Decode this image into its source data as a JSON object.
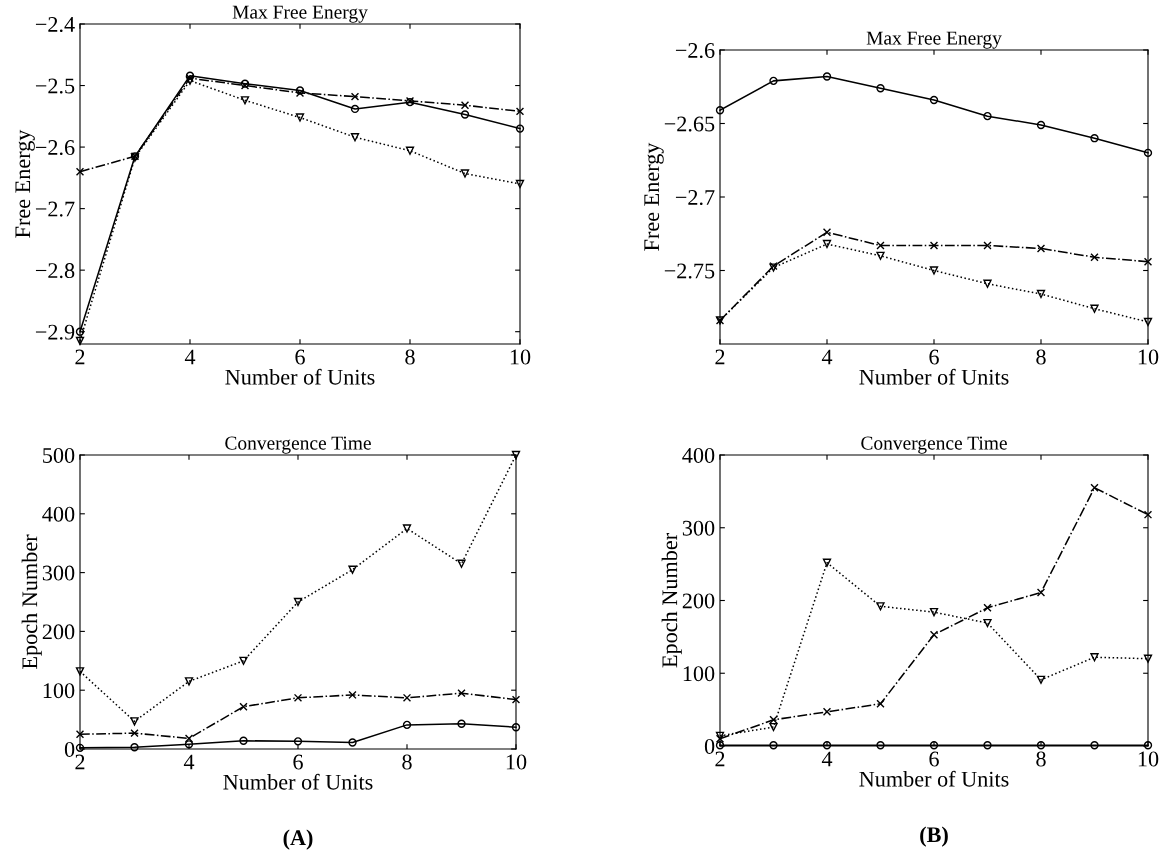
{
  "chart_data": [
    {
      "type": "line",
      "title": "Max Free Energy",
      "xlabel": "Number of Units",
      "ylabel": "Free Energy",
      "x": [
        2,
        3,
        4,
        5,
        6,
        7,
        8,
        9,
        10
      ],
      "xlim": [
        2,
        10
      ],
      "xticks": [
        2,
        4,
        6,
        8,
        10
      ],
      "ylim": [
        -2.92,
        -2.4
      ],
      "yticks": [
        {
          "value": -2.9,
          "label": "−2.9"
        },
        {
          "value": -2.8,
          "label": "−2.8"
        },
        {
          "value": -2.7,
          "label": "−2.7"
        },
        {
          "value": -2.6,
          "label": "−2.6"
        },
        {
          "value": -2.5,
          "label": "−2.5"
        },
        {
          "value": -2.4,
          "label": "−2.4"
        }
      ],
      "grid": false,
      "legend": false,
      "series": [
        {
          "color": "#000000",
          "marker": "circle",
          "line_style": "solid",
          "values": [
            -2.9,
            -2.615,
            -2.484,
            -2.497,
            -2.508,
            -2.538,
            -2.527,
            -2.547,
            -2.57
          ]
        },
        {
          "color": "#000000",
          "marker": "cross",
          "line_style": "dashdot",
          "values": [
            -2.64,
            -2.615,
            -2.488,
            -2.5,
            -2.512,
            -2.518,
            -2.525,
            -2.532,
            -2.542
          ]
        },
        {
          "color": "#000000",
          "marker": "triangle",
          "line_style": "dotted",
          "values": [
            -2.915,
            -2.617,
            -2.492,
            -2.524,
            -2.552,
            -2.584,
            -2.606,
            -2.643,
            -2.66
          ]
        }
      ]
    },
    {
      "type": "line",
      "title": "Max Free Energy",
      "xlabel": "Number of Units",
      "ylabel": "Free Energy",
      "x": [
        2,
        3,
        4,
        5,
        6,
        7,
        8,
        9,
        10
      ],
      "xlim": [
        2,
        10
      ],
      "xticks": [
        2,
        4,
        6,
        8,
        10
      ],
      "ylim": [
        -2.8,
        -2.6
      ],
      "yticks": [
        {
          "value": -2.75,
          "label": "−2.75"
        },
        {
          "value": -2.7,
          "label": "−2.7"
        },
        {
          "value": -2.65,
          "label": "−2.65"
        },
        {
          "value": -2.6,
          "label": "−2.6"
        }
      ],
      "grid": false,
      "legend": false,
      "series": [
        {
          "color": "#000000",
          "marker": "circle",
          "line_style": "solid",
          "values": [
            -2.641,
            -2.621,
            -2.618,
            -2.626,
            -2.634,
            -2.645,
            -2.651,
            -2.66,
            -2.67
          ]
        },
        {
          "color": "#000000",
          "marker": "cross",
          "line_style": "dashdot",
          "values": [
            -2.784,
            -2.747,
            -2.724,
            -2.733,
            -2.733,
            -2.733,
            -2.735,
            -2.741,
            -2.744
          ]
        },
        {
          "color": "#000000",
          "marker": "triangle",
          "line_style": "dotted",
          "values": [
            -2.784,
            -2.748,
            -2.732,
            -2.74,
            -2.75,
            -2.759,
            -2.766,
            -2.776,
            -2.785
          ]
        }
      ]
    },
    {
      "type": "line",
      "title": "Convergence Time",
      "xlabel": "Number of Units",
      "ylabel": "Epoch Number",
      "x": [
        2,
        3,
        4,
        5,
        6,
        7,
        8,
        9,
        10
      ],
      "xlim": [
        2,
        10
      ],
      "xticks": [
        2,
        4,
        6,
        8,
        10
      ],
      "ylim": [
        0,
        500
      ],
      "yticks": [
        0,
        100,
        200,
        300,
        400,
        500
      ],
      "grid": false,
      "legend": false,
      "annotations": [
        "(A)"
      ],
      "series": [
        {
          "color": "#000000",
          "marker": "circle",
          "line_style": "solid",
          "values": [
            2,
            3,
            8,
            14,
            13,
            11,
            41,
            43,
            37
          ]
        },
        {
          "color": "#000000",
          "marker": "cross",
          "line_style": "dashdot",
          "values": [
            25,
            27,
            18,
            72,
            87,
            92,
            87,
            95,
            84
          ]
        },
        {
          "color": "#000000",
          "marker": "triangle",
          "line_style": "dotted",
          "values": [
            132,
            47,
            115,
            150,
            250,
            305,
            375,
            315,
            500
          ]
        }
      ]
    },
    {
      "type": "line",
      "title": "Convergence Time",
      "xlabel": "Number of Units",
      "ylabel": "Epoch Number",
      "x": [
        2,
        3,
        4,
        5,
        6,
        7,
        8,
        9,
        10
      ],
      "xlim": [
        2,
        10
      ],
      "xticks": [
        2,
        4,
        6,
        8,
        10
      ],
      "ylim": [
        0,
        400
      ],
      "yticks": [
        0,
        100,
        200,
        300,
        400
      ],
      "grid": false,
      "legend": false,
      "annotations": [
        "(B)"
      ],
      "series": [
        {
          "color": "#000000",
          "marker": "circle",
          "line_style": "solid",
          "values": [
            1,
            1,
            1,
            1,
            1,
            1,
            1,
            1,
            1
          ]
        },
        {
          "color": "#000000",
          "marker": "cross",
          "line_style": "dashdot",
          "values": [
            10,
            36,
            47,
            58,
            153,
            190,
            211,
            355,
            318
          ]
        },
        {
          "color": "#000000",
          "marker": "triangle",
          "line_style": "dotted",
          "values": [
            14,
            26,
            252,
            192,
            184,
            169,
            91,
            122,
            120
          ]
        }
      ]
    }
  ]
}
